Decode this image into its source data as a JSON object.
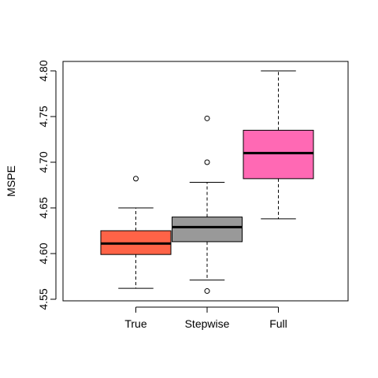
{
  "chart_data": {
    "type": "box",
    "title": "",
    "xlabel": "",
    "ylabel": "MSPE",
    "ylim": [
      4.55,
      4.8
    ],
    "yticks": [
      "4.55",
      "4.60",
      "4.65",
      "4.70",
      "4.75",
      "4.80"
    ],
    "grid": false,
    "series": [
      {
        "name": "True",
        "color": "#ff6347",
        "min": 4.562,
        "q1": 4.599,
        "median": 4.611,
        "q3": 4.625,
        "max": 4.65,
        "outliers": [
          4.682
        ]
      },
      {
        "name": "Stepwise",
        "color": "#999999",
        "min": 4.571,
        "q1": 4.613,
        "median": 4.629,
        "q3": 4.64,
        "max": 4.678,
        "outliers": [
          4.559,
          4.7,
          4.748
        ]
      },
      {
        "name": "Full",
        "color": "#ff69b4",
        "min": 4.638,
        "q1": 4.682,
        "median": 4.71,
        "q3": 4.735,
        "max": 4.8,
        "outliers": []
      }
    ]
  }
}
